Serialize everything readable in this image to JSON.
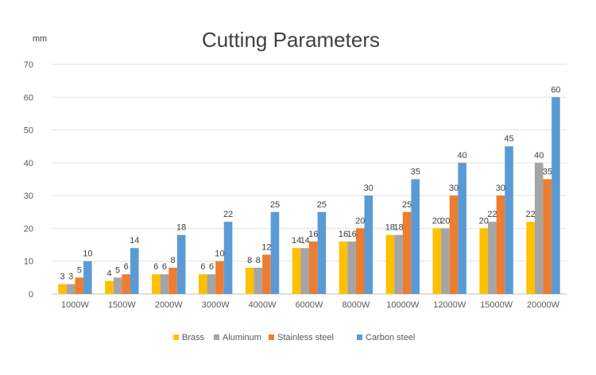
{
  "chart_data": {
    "type": "bar",
    "title": "Cutting Parameters",
    "ylabel": "mm",
    "xlabel": "",
    "ylim": [
      0,
      70
    ],
    "yticks": [
      0,
      10,
      20,
      30,
      40,
      50,
      60,
      70
    ],
    "grid": true,
    "legend_position": "bottom",
    "categories": [
      "1000W",
      "1500W",
      "2000W",
      "3000W",
      "4000W",
      "6000W",
      "8000W",
      "10000W",
      "12000W",
      "15000W",
      "20000W"
    ],
    "series": [
      {
        "name": "Brass",
        "color": "#ffc000",
        "values": [
          3,
          4,
          6,
          6,
          8,
          14,
          16,
          18,
          20,
          20,
          22
        ]
      },
      {
        "name": "Aluminum",
        "color": "#a5a5a5",
        "values": [
          3,
          5,
          6,
          6,
          8,
          14,
          16,
          18,
          20,
          22,
          40
        ]
      },
      {
        "name": "Stainless steel",
        "color": "#ed7d31",
        "values": [
          5,
          6,
          8,
          10,
          12,
          16,
          20,
          25,
          30,
          30,
          35
        ]
      },
      {
        "name": "Carbon steel",
        "color": "#5b9bd5",
        "values": [
          10,
          14,
          18,
          22,
          25,
          25,
          30,
          35,
          40,
          45,
          60
        ]
      }
    ]
  }
}
